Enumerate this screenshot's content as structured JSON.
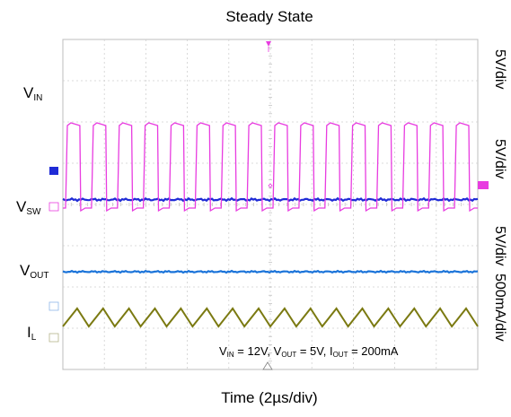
{
  "chart_data": {
    "type": "line",
    "title": "Steady State",
    "xlabel": "Time (2µs/div)",
    "x_divisions": 10,
    "series": [
      {
        "name": "VIN",
        "channel_scale": "5V/div",
        "color": "#1f2bd6",
        "waveform": "dc",
        "level_div": 2.9
      },
      {
        "name": "VSW",
        "channel_scale": "5V/div",
        "color": "#e83ce0",
        "waveform": "square",
        "cycles": 16,
        "high_div": 6.6,
        "low_div": 4.3
      },
      {
        "name": "VOUT",
        "channel_scale": "5V/div",
        "color": "#1a73d9",
        "waveform": "dc",
        "level_div": 2.3
      },
      {
        "name": "IL",
        "channel_scale": "500mA/div",
        "color": "#7b7a12",
        "waveform": "triangle",
        "cycles": 16
      }
    ],
    "scale_labels": [
      "5V/div",
      "5V/div",
      "5V/div",
      "500mA/div"
    ]
  },
  "labels": {
    "vin": {
      "main": "V",
      "sub": "IN"
    },
    "vsw": {
      "main": "V",
      "sub": "SW"
    },
    "vout": {
      "main": "V",
      "sub": "OUT"
    },
    "il": {
      "main": "I",
      "sub": "L"
    }
  },
  "annotation": {
    "p1": "V",
    "s1": "IN",
    "t1": " = 12V, V",
    "s2": "OUT",
    "t2": " = 5V, I",
    "s3": "OUT",
    "t3": " = 200mA"
  }
}
